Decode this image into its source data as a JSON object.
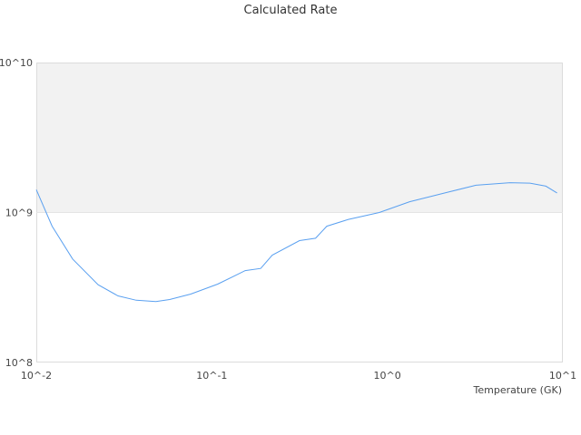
{
  "chart_data": {
    "type": "line",
    "title": "Calculated Rate",
    "xlabel": "Temperature (GK)",
    "ylabel": "",
    "xscale": "log",
    "yscale": "log",
    "xlim": [
      0.01,
      10
    ],
    "ylim": [
      100000000.0,
      10000000000.0
    ],
    "x_tick_labels": [
      "10^-2",
      "10^-1",
      "10^0",
      "10^1"
    ],
    "y_tick_labels": [
      "10^8",
      "10^9",
      "10^10"
    ],
    "grid": false,
    "shaded_band": {
      "from": 1000000000.0,
      "to": 10000000000.0,
      "color": "#f2f2f2"
    },
    "line_color": "#5aa0f0",
    "series": [
      {
        "x": [
          0.01,
          0.0123,
          0.0161,
          0.0225,
          0.0292,
          0.0371,
          0.048,
          0.0575,
          0.0758,
          0.108,
          0.155,
          0.19,
          0.221,
          0.316,
          0.39,
          0.452,
          0.6,
          0.9,
          1.34,
          2.18,
          3.2,
          5.0,
          6.5,
          8.0,
          9.27
        ],
        "y": [
          1420000000.0,
          810000000.0,
          490000000.0,
          330000000.0,
          278000000.0,
          260000000.0,
          255000000.0,
          263000000.0,
          286000000.0,
          333000000.0,
          410000000.0,
          424000000.0,
          520000000.0,
          650000000.0,
          674000000.0,
          810000000.0,
          900000000.0,
          1000000000.0,
          1180000000.0,
          1360000000.0,
          1520000000.0,
          1580000000.0,
          1570000000.0,
          1500000000.0,
          1350000000.0
        ]
      }
    ]
  }
}
